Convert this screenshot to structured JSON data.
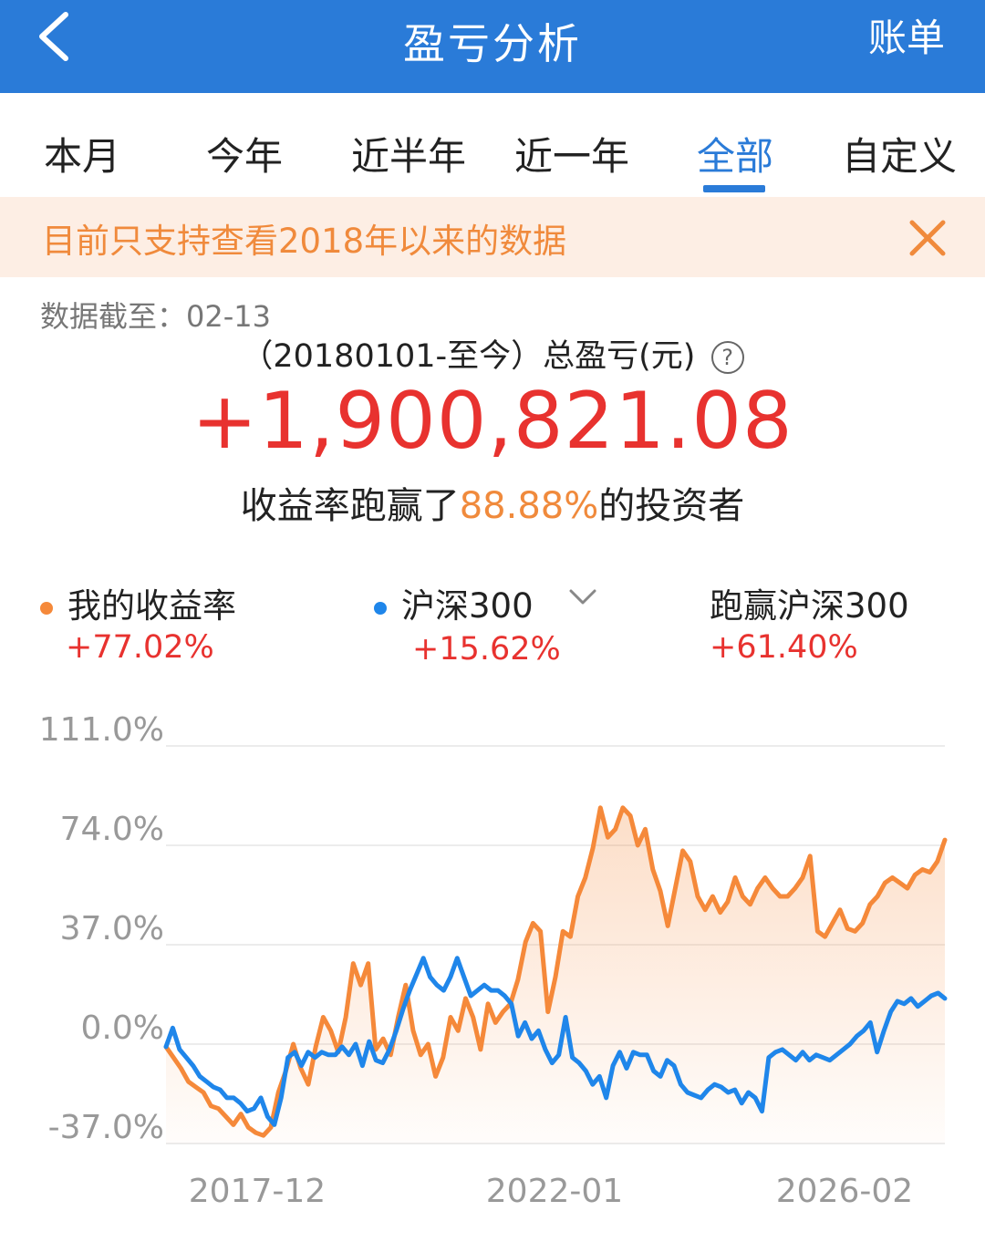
{
  "header": {
    "back_icon": "chevron-left-icon",
    "title": "盈亏分析",
    "bill_label": "账单"
  },
  "tabs": [
    {
      "label": "本月",
      "active": false
    },
    {
      "label": "今年",
      "active": false
    },
    {
      "label": "近半年",
      "active": false
    },
    {
      "label": "近一年",
      "active": false
    },
    {
      "label": "全部",
      "active": true
    },
    {
      "label": "自定义",
      "active": false
    }
  ],
  "notice": {
    "text": "目前只支持查看2018年以来的数据",
    "close_icon": "close-icon"
  },
  "summary": {
    "data_date_label": "数据截至：",
    "data_date": "02-13",
    "total_label": "（20180101-至今）总盈亏(元)",
    "help_icon": "question-circle-icon",
    "total_value": "+1,900,821.08",
    "beat_prefix": "收益率跑赢了",
    "beat_pct": "88.88%",
    "beat_suffix": "的投资者"
  },
  "legend": {
    "mine_label": "我的收益率",
    "mine_value": "+77.02%",
    "index_label": "沪深300",
    "index_value": "+15.62%",
    "index_dropdown_icon": "chevron-down-icon",
    "diff_label": "跑赢沪深300",
    "diff_value": "+61.40%"
  },
  "colors": {
    "header_bg": "#2a7bd8",
    "accent_blue": "#2a7bd8",
    "mine_line": "#f5893a",
    "index_line": "#1f86ea",
    "positive_red": "#e8322f",
    "notice_bg": "#fdeee4",
    "notice_text": "#f08a3c"
  },
  "chart_data": {
    "type": "line",
    "y_ticks": [
      "111.0%",
      "74.0%",
      "37.0%",
      "0.0%",
      "-37.0%"
    ],
    "y_tick_values": [
      111,
      74,
      37,
      0,
      -37
    ],
    "ylim": [
      -37,
      111
    ],
    "x_ticks": [
      "2017-12",
      "2022-01",
      "2026-02"
    ],
    "grid": true,
    "series": [
      {
        "name": "我的收益率",
        "fill_area": true,
        "values": [
          -1,
          -5,
          -9,
          -14,
          -16,
          -18,
          -23,
          -24,
          -27,
          -30,
          -26,
          -31,
          -33,
          -34,
          -31,
          -18,
          -10,
          0,
          -9,
          -15,
          -1,
          10,
          5,
          -3,
          10,
          30,
          22,
          30,
          -2,
          2,
          -4,
          10,
          22,
          5,
          -4,
          0,
          -12,
          -5,
          10,
          5,
          17,
          10,
          -2,
          15,
          8,
          12,
          15,
          24,
          38,
          45,
          42,
          12,
          25,
          42,
          40,
          55,
          62,
          73,
          88,
          77,
          80,
          88,
          85,
          74,
          80,
          65,
          57,
          44,
          58,
          72,
          68,
          55,
          50,
          55,
          49,
          53,
          62,
          55,
          52,
          58,
          62,
          58,
          55,
          55,
          58,
          62,
          70,
          42,
          40,
          45,
          50,
          43,
          42,
          45,
          52,
          55,
          60,
          62,
          60,
          58,
          63,
          65,
          64,
          68,
          76
        ]
      },
      {
        "name": "沪深300",
        "values": [
          -1,
          6,
          -2,
          -5,
          -8,
          -12,
          -14,
          -16,
          -17,
          -20,
          -20,
          -22,
          -25,
          -24,
          -20,
          -27,
          -30,
          -20,
          -5,
          -3,
          -8,
          -3,
          -5,
          -3,
          -4,
          -4,
          -1,
          -4,
          0,
          -8,
          1,
          -6,
          -7,
          -2,
          5,
          13,
          20,
          26,
          32,
          25,
          22,
          20,
          25,
          32,
          25,
          18,
          20,
          22,
          20,
          20,
          18,
          15,
          3,
          8,
          2,
          5,
          -2,
          -7,
          -4,
          10,
          -5,
          -7,
          -10,
          -15,
          -12,
          -20,
          -8,
          -3,
          -9,
          -3,
          -4,
          -4,
          -10,
          -12,
          -6,
          -8,
          -15,
          -18,
          -19,
          -20,
          -17,
          -15,
          -16,
          -18,
          -17,
          -22,
          -18,
          -20,
          -25,
          -5,
          -3,
          -2,
          -4,
          -6,
          -3,
          -6,
          -4,
          -5,
          -6,
          -4,
          -2,
          0,
          3,
          5,
          8,
          -3,
          5,
          12,
          16,
          15,
          17,
          14,
          16,
          18,
          19,
          17
        ]
      }
    ]
  }
}
